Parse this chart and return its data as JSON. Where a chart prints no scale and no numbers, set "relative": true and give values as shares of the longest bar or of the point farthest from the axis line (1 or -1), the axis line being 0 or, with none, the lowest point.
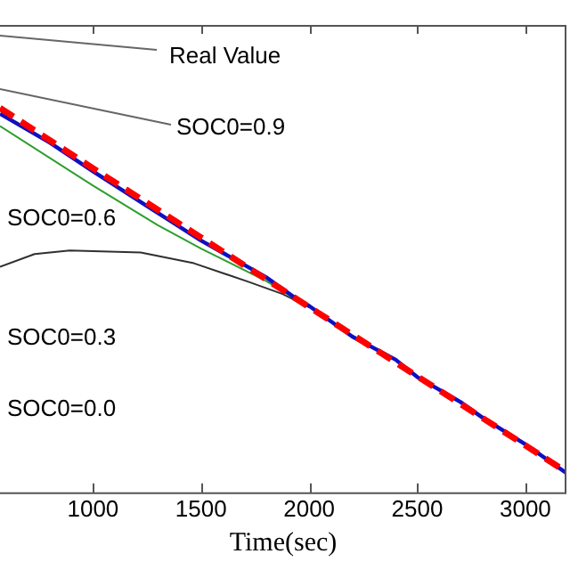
{
  "chart_data": {
    "type": "line",
    "relative": true,
    "xlabel": "Time(sec)",
    "xlim": [
      570,
      3190
    ],
    "xticks": [
      1000,
      1500,
      2000,
      2500,
      3000
    ],
    "line_style": "solid",
    "marker": "none",
    "annotations": [
      "Real Value",
      "SOC0=0.9",
      "SOC0=0.6",
      "SOC0=0.3",
      "SOC0=0.0"
    ],
    "series": [
      {
        "color": "#ff0000",
        "line_style": "dashed",
        "x": [
          570,
          1000,
          1500,
          2000,
          2500,
          3000,
          3190
        ],
        "values": [
          1,
          0.843,
          0.663,
          0.482,
          0.302,
          0.122,
          0.053
        ]
      },
      {
        "color": "#1010c0",
        "x": [
          570,
          800,
          1000,
          1250,
          1500,
          1800,
          1950,
          2000,
          2200,
          2400,
          2500,
          2700,
          2800,
          3000,
          3190
        ],
        "values": [
          0.985,
          0.91,
          0.835,
          0.745,
          0.655,
          0.56,
          0.5,
          0.485,
          0.405,
          0.345,
          0.3,
          0.235,
          0.195,
          0.125,
          0.05
        ]
      },
      {
        "color": "#2e9e2e",
        "x": [
          570,
          1000,
          1300,
          1500,
          1800,
          2000
        ],
        "values": [
          0.953,
          0.798,
          0.695,
          0.634,
          0.55,
          0.482
        ]
      },
      {
        "color": "#303030",
        "x": [
          570,
          730,
          893,
          1221,
          1467,
          1713,
          1877,
          2000
        ],
        "values": [
          0.587,
          0.62,
          0.629,
          0.624,
          0.596,
          0.549,
          0.516,
          0.482
        ]
      }
    ]
  }
}
